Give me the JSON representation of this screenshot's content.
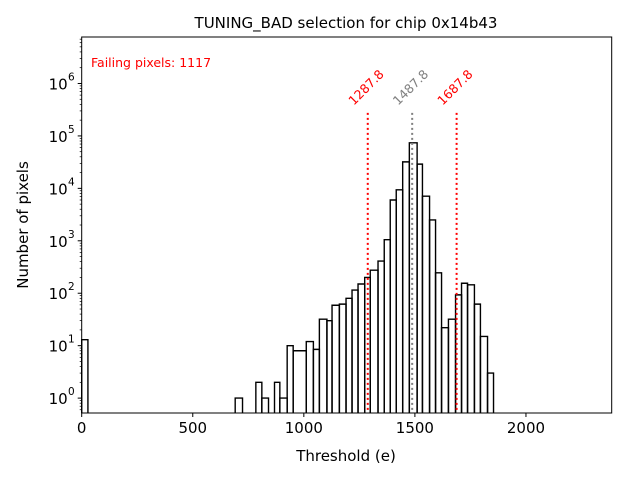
{
  "chart_data": {
    "type": "histogram",
    "title": "TUNING_BAD selection for chip 0x14b43",
    "xlabel": "Threshold (e)",
    "ylabel": "Number of pixels",
    "yscale": "log",
    "xlim": [
      0,
      2386
    ],
    "ylim": [
      0.52,
      7700000
    ],
    "x_ticks": [
      0,
      500,
      1000,
      1500,
      2000
    ],
    "x_tick_labels": [
      "0",
      "500",
      "1000",
      "1500",
      "2000"
    ],
    "y_ticks": [
      1,
      10,
      100,
      1000,
      10000,
      100000,
      1000000
    ],
    "y_tick_labels": [
      {
        "base": "10",
        "exp": "0"
      },
      {
        "base": "10",
        "exp": "1"
      },
      {
        "base": "10",
        "exp": "2"
      },
      {
        "base": "10",
        "exp": "3"
      },
      {
        "base": "10",
        "exp": "4"
      },
      {
        "base": "10",
        "exp": "5"
      },
      {
        "base": "10",
        "exp": "6"
      }
    ],
    "grid": false,
    "bins": [
      {
        "x0": 0,
        "x1": 28,
        "count": 13
      },
      {
        "x0": 691,
        "x1": 724,
        "count": 1
      },
      {
        "x0": 784,
        "x1": 811,
        "count": 2
      },
      {
        "x0": 811,
        "x1": 841,
        "count": 1
      },
      {
        "x0": 868,
        "x1": 892,
        "count": 2
      },
      {
        "x0": 892,
        "x1": 925,
        "count": 1
      },
      {
        "x0": 925,
        "x1": 952,
        "count": 10
      },
      {
        "x0": 952,
        "x1": 1011,
        "count": 8
      },
      {
        "x0": 1011,
        "x1": 1043,
        "count": 12
      },
      {
        "x0": 1043,
        "x1": 1070,
        "count": 8.5
      },
      {
        "x0": 1070,
        "x1": 1104,
        "count": 32
      },
      {
        "x0": 1104,
        "x1": 1127,
        "count": 30
      },
      {
        "x0": 1127,
        "x1": 1160,
        "count": 59
      },
      {
        "x0": 1160,
        "x1": 1190,
        "count": 62
      },
      {
        "x0": 1190,
        "x1": 1217,
        "count": 80
      },
      {
        "x0": 1217,
        "x1": 1244,
        "count": 115
      },
      {
        "x0": 1244,
        "x1": 1274,
        "count": 150
      },
      {
        "x0": 1274,
        "x1": 1299,
        "count": 200
      },
      {
        "x0": 1299,
        "x1": 1334,
        "count": 275
      },
      {
        "x0": 1334,
        "x1": 1362,
        "count": 410
      },
      {
        "x0": 1362,
        "x1": 1389,
        "count": 1050
      },
      {
        "x0": 1389,
        "x1": 1416,
        "count": 6000
      },
      {
        "x0": 1416,
        "x1": 1445,
        "count": 9400
      },
      {
        "x0": 1445,
        "x1": 1475,
        "count": 32000
      },
      {
        "x0": 1475,
        "x1": 1510,
        "count": 74000
      },
      {
        "x0": 1510,
        "x1": 1534,
        "count": 29000
      },
      {
        "x0": 1534,
        "x1": 1566,
        "count": 7100
      },
      {
        "x0": 1566,
        "x1": 1593,
        "count": 2500
      },
      {
        "x0": 1593,
        "x1": 1620,
        "count": 245
      },
      {
        "x0": 1620,
        "x1": 1651,
        "count": 22
      },
      {
        "x0": 1651,
        "x1": 1683,
        "count": 32
      },
      {
        "x0": 1683,
        "x1": 1710,
        "count": 93
      },
      {
        "x0": 1710,
        "x1": 1737,
        "count": 155
      },
      {
        "x0": 1737,
        "x1": 1768,
        "count": 145
      },
      {
        "x0": 1768,
        "x1": 1795,
        "count": 62
      },
      {
        "x0": 1795,
        "x1": 1827,
        "count": 15
      },
      {
        "x0": 1827,
        "x1": 1854,
        "count": 3
      }
    ],
    "vlines": [
      {
        "x": 1287.8,
        "label": "1287.8",
        "color": "#ff0000",
        "style": "dotted",
        "ymax": 275000
      },
      {
        "x": 1487.8,
        "label": "1487.8",
        "color": "#808080",
        "style": "dotted",
        "ymax": 275000
      },
      {
        "x": 1687.8,
        "label": "1687.8",
        "color": "#ff0000",
        "style": "dotted",
        "ymax": 275000
      }
    ],
    "annotations": [
      {
        "text": "Failing pixels: 1117",
        "color": "#ff0000",
        "position": "top-left"
      }
    ],
    "line_color": "#000000"
  }
}
